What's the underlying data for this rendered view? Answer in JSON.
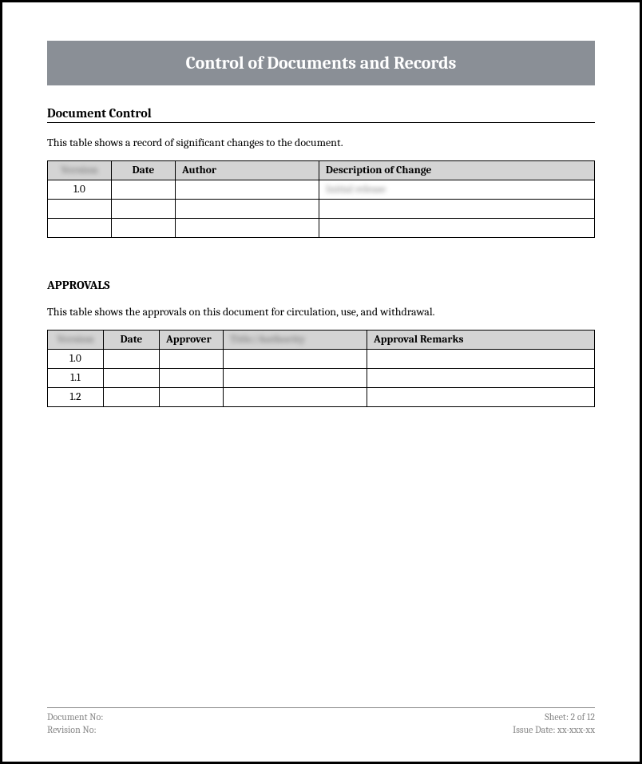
{
  "title": "Control of Documents and Records",
  "section1": {
    "heading": "Document Control",
    "description": "This table shows a record of significant changes to the document.",
    "columns": {
      "c1": "Version",
      "c2": "Date",
      "c3": "Author",
      "c4": "Description of Change"
    },
    "rows": [
      {
        "version": "1.0",
        "date": "",
        "author": "",
        "desc": "Initial release"
      },
      {
        "version": "",
        "date": "",
        "author": "",
        "desc": ""
      },
      {
        "version": "",
        "date": "",
        "author": "",
        "desc": ""
      }
    ]
  },
  "section2": {
    "heading": "APPROVALS",
    "description": "This table shows the approvals on this document for circulation, use, and withdrawal.",
    "columns": {
      "c1": "Version",
      "c2": "Date",
      "c3": "Approver",
      "c4": "Title/Authority",
      "c5": "Approval Remarks"
    },
    "rows": [
      {
        "version": "1.0",
        "date": "",
        "approver": "",
        "authority": "",
        "remarks": ""
      },
      {
        "version": "1.1",
        "date": "",
        "approver": "",
        "authority": "",
        "remarks": ""
      },
      {
        "version": "1.2",
        "date": "",
        "approver": "",
        "authority": "",
        "remarks": ""
      }
    ]
  },
  "footer": {
    "doc_no_label": "Document No:",
    "doc_no_value": "",
    "rev_no_label": "Revision No:",
    "rev_no_value": "",
    "sheet_label": "Sheet:",
    "sheet_value": "2 of 12",
    "issue_label": "Issue Date:",
    "issue_value": "xx-xxx-xx"
  },
  "colors": {
    "banner_bg": "#8a8f96",
    "banner_text": "#ffffff",
    "th_bg": "#d4d4d4",
    "border": "#000000",
    "footer_text": "#888888"
  }
}
